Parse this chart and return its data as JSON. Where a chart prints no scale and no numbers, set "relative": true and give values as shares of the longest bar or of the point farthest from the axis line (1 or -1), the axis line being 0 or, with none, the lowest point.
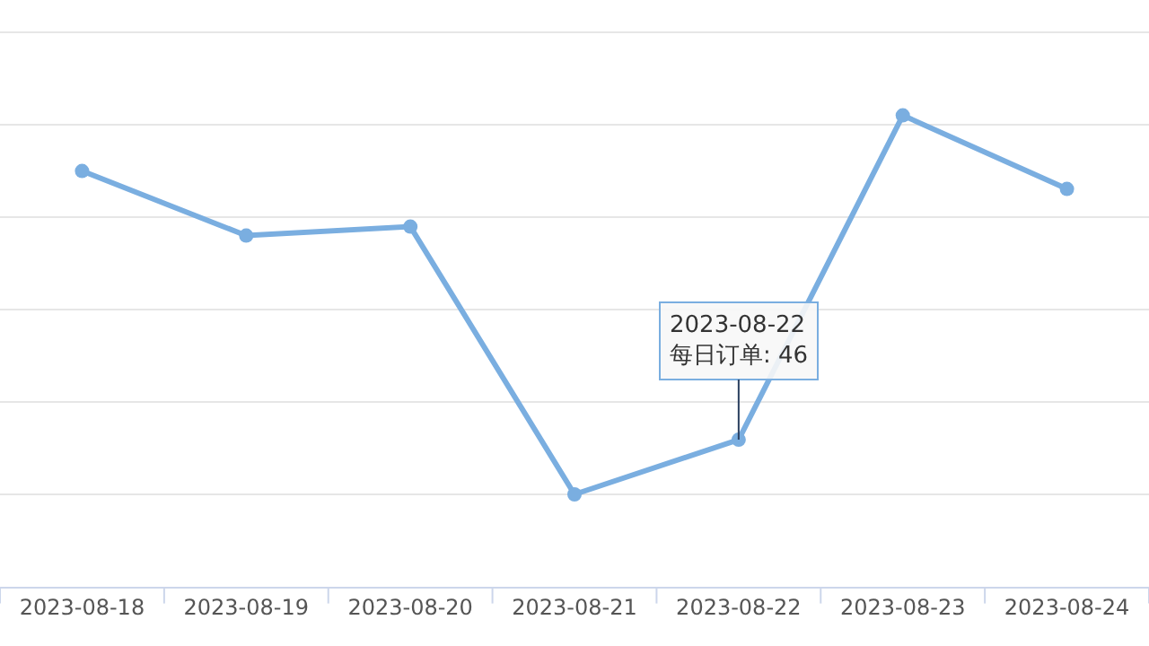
{
  "chart_data": {
    "type": "line",
    "relative": true,
    "categories": [
      "2023-08-18",
      "2023-08-19",
      "2023-08-20",
      "2023-08-21",
      "2023-08-22",
      "2023-08-23",
      "2023-08-24"
    ],
    "series": [
      {
        "color": "#7aaee0",
        "values": [
          0.882,
          0.745,
          0.764,
          0.196,
          0.312,
          1,
          0.844
        ]
      }
    ],
    "marker": "circle",
    "line_style": "solid",
    "grid": "y",
    "legend": false,
    "annotations": [
      {
        "text": "2023-08-22\n每日订单: 46",
        "x": "2023-08-22",
        "y": 0.312
      }
    ]
  }
}
